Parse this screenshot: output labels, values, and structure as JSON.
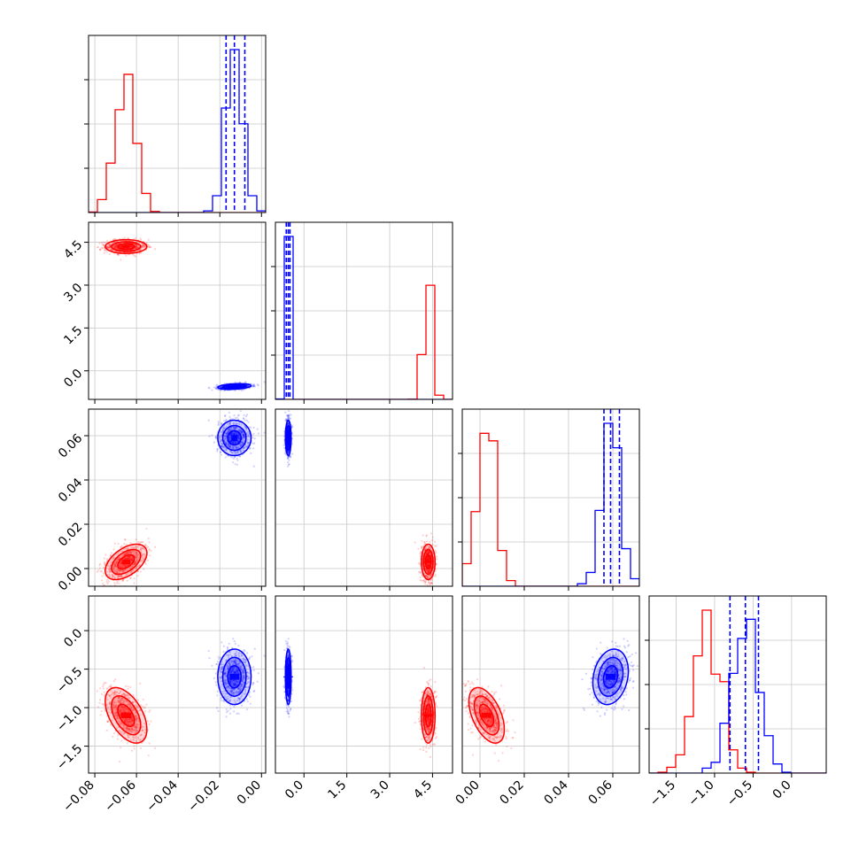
{
  "chart_data": {
    "type": "corner",
    "n_params": 4,
    "grid": true,
    "series": [
      {
        "color": "#ff0000",
        "means": [
          -0.065,
          4.35,
          0.003,
          -1.1
        ],
        "stds": [
          0.005,
          0.12,
          0.004,
          0.18
        ],
        "corr": [
          [
            1,
            0,
            0.5,
            -0.5
          ],
          [
            0,
            1,
            0,
            0
          ],
          [
            0.5,
            0,
            1,
            -0.5
          ],
          [
            -0.5,
            0,
            -0.5,
            1
          ]
        ]
      },
      {
        "color": "#0000ff",
        "means": [
          -0.013,
          -0.55,
          0.059,
          -0.6
        ],
        "stds": [
          0.004,
          0.05,
          0.004,
          0.18
        ],
        "corr": [
          [
            1,
            0.3,
            0,
            0
          ],
          [
            0.3,
            1,
            0,
            0
          ],
          [
            0,
            0,
            1,
            0.2
          ],
          [
            0,
            0,
            0.2,
            1
          ]
        ]
      }
    ],
    "quantile_lines": [
      [
        -0.017,
        -0.013,
        -0.008
      ],
      [
        -0.62,
        -0.55,
        -0.49
      ],
      [
        0.056,
        0.059,
        0.063
      ],
      [
        -0.8,
        -0.6,
        -0.43
      ]
    ],
    "ranges": [
      [
        -0.083,
        0.002
      ],
      [
        -1.0,
        5.2
      ],
      [
        -0.008,
        0.072
      ],
      [
        -1.85,
        0.45
      ]
    ],
    "ticks": [
      [
        -0.08,
        -0.06,
        -0.04,
        -0.02,
        0.0
      ],
      [
        0.0,
        1.5,
        3.0,
        4.5
      ],
      [
        0.0,
        0.02,
        0.04,
        0.06
      ],
      [
        -1.5,
        -1.0,
        -0.5,
        0.0
      ]
    ],
    "tick_labels": [
      [
        "−0.08",
        "−0.06",
        "−0.04",
        "−0.02",
        "0.00"
      ],
      [
        "0.0",
        "1.5",
        "3.0",
        "4.5"
      ],
      [
        "0.00",
        "0.02",
        "0.04",
        "0.06"
      ],
      [
        "−1.5",
        "−1.0",
        "−0.5",
        "0.0"
      ]
    ],
    "hist_peak_bins": [
      [
        -0.065,
        1.0
      ],
      [
        4.35,
        1.0
      ],
      [
        0.003,
        1.0
      ],
      [
        -1.1,
        1.0
      ]
    ]
  }
}
